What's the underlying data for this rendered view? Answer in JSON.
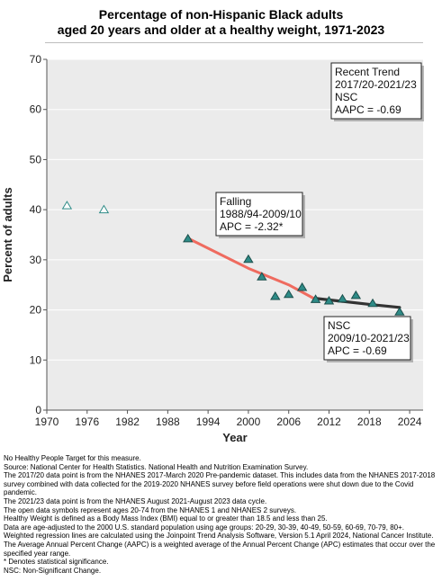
{
  "title_line1": "Percentage of non-Hispanic Black adults",
  "title_line2": "aged 20 years and older at a healthy weight, 1971-2023",
  "chart_data": {
    "type": "scatter",
    "title": "Percentage of non-Hispanic Black adults aged 20 years and older at a healthy weight, 1971-2023",
    "xlabel": "Year",
    "ylabel": "Percent of adults",
    "xlim": [
      1970,
      2026
    ],
    "ylim": [
      0,
      70
    ],
    "xticks": [
      1970,
      1976,
      1982,
      1988,
      1994,
      2000,
      2006,
      2012,
      2018,
      2024
    ],
    "yticks": [
      0,
      10,
      20,
      30,
      40,
      50,
      60,
      70
    ],
    "grid": "horizontal",
    "series": [
      {
        "marker": "open-triangle",
        "color": "#2e8b87",
        "points": [
          {
            "x": 1973,
            "y": 40.8
          },
          {
            "x": 1978.5,
            "y": 40.0
          }
        ]
      },
      {
        "marker": "filled-triangle",
        "color": "#2e8b87",
        "points": [
          {
            "x": 1991,
            "y": 34.2
          },
          {
            "x": 2000,
            "y": 30.1
          },
          {
            "x": 2002,
            "y": 26.6
          },
          {
            "x": 2004,
            "y": 22.7
          },
          {
            "x": 2006,
            "y": 23.1
          },
          {
            "x": 2008,
            "y": 24.5
          },
          {
            "x": 2010,
            "y": 22.1
          },
          {
            "x": 2012,
            "y": 21.8
          },
          {
            "x": 2014,
            "y": 22.2
          },
          {
            "x": 2016,
            "y": 22.9
          },
          {
            "x": 2018.5,
            "y": 21.3
          },
          {
            "x": 2022.5,
            "y": 19.6
          }
        ]
      }
    ],
    "trend_lines": [
      {
        "color": "#ef6b5f",
        "points": [
          [
            1991,
            34.3
          ],
          [
            2000,
            28.3
          ],
          [
            2006,
            25.0
          ],
          [
            2010,
            22.1
          ]
        ]
      },
      {
        "color": "#333333",
        "points": [
          [
            2010,
            22.3
          ],
          [
            2014,
            21.7
          ],
          [
            2018,
            21.1
          ],
          [
            2022.5,
            20.5
          ]
        ]
      }
    ],
    "annotations": [
      {
        "id": "recent",
        "lines": [
          "Recent Trend",
          "2017/20-2021/23",
          "NSC",
          "AAPC = -0.69"
        ]
      },
      {
        "id": "falling",
        "lines": [
          "Falling",
          "1988/94-2009/10",
          "APC = -2.32*"
        ]
      },
      {
        "id": "nsc",
        "lines": [
          "NSC",
          "2009/10-2021/23",
          "APC = -0.69"
        ]
      }
    ]
  },
  "notes": [
    "No Healthy People Target for this measure.",
    "Source: National Center for Health Statistics. National Health and Nutrition Examination Survey.",
    "The 2017/20 data point is from the NHANES 2017-March 2020 Pre-pandemic dataset. This includes data from the NHANES 2017-2018 survey combined with data collected for the 2019-2020 NHANES survey before field operations were shut down due to the Covid pandemic.",
    "The 2021/23 data point is from the NHANES August 2021-August 2023 data cycle.",
    "The open data symbols represent ages 20-74 from the NHANES 1 and NHANES 2 surveys.",
    "Healthy Weight is defined as a Body Mass Index (BMI) equal to or greater than 18.5 and less than 25.",
    "Data are age-adjusted to the 2000 U.S. standard population using age groups: 20-29, 30-39, 40-49, 50-59, 60-69, 70-79, 80+.",
    "Weighted regression lines are calculated using the Joinpoint Trend Analysis Software, Version 5.1 April 2024, National Cancer Institute.",
    "The Average Annual Percent Change (AAPC) is a weighted average of the Annual Percent Change (APC) estimates that occur over the specified year range.",
    "* Denotes statistical significance.",
    "NSC: Non-Significant Change."
  ]
}
